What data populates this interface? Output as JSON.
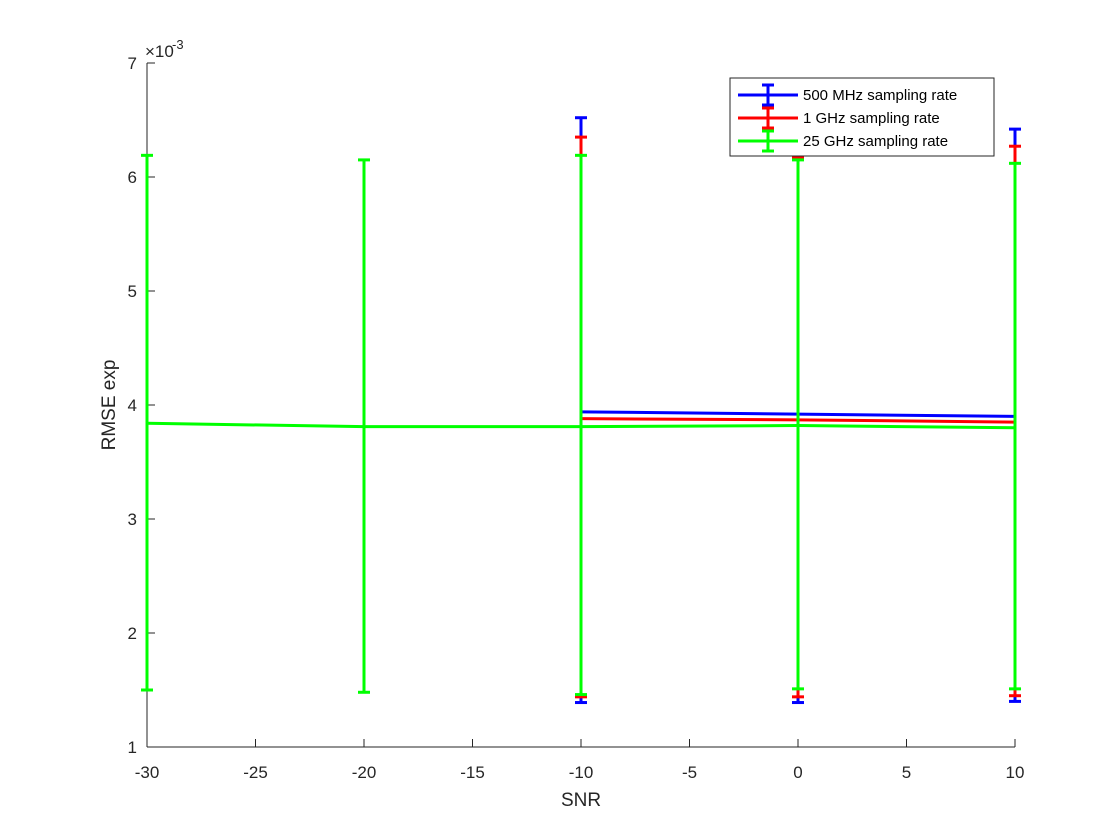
{
  "chart_data": {
    "type": "line",
    "xlabel": "SNR",
    "ylabel": "RMSE exp",
    "y_exponent_label": "×10",
    "y_exponent_power": "-3",
    "xlim": [
      -30,
      10
    ],
    "ylim": [
      1,
      7
    ],
    "y_scale_factor": 0.001,
    "xticks": [
      "-30",
      "-25",
      "-20",
      "-15",
      "-10",
      "-5",
      "0",
      "5",
      "10"
    ],
    "yticks": [
      "1",
      "2",
      "3",
      "4",
      "5",
      "6",
      "7"
    ],
    "grid": false,
    "legend_position": "top-right",
    "series": [
      {
        "name": "500 MHz sampling rate",
        "color": "#0000FF",
        "x": [
          -10,
          0,
          10
        ],
        "y": [
          3.94,
          3.92,
          3.9
        ],
        "err_low": [
          1.39,
          1.39,
          1.4
        ],
        "err_high": [
          6.52,
          6.2,
          6.42
        ]
      },
      {
        "name": "1 GHz sampling rate",
        "color": "#FF0000",
        "x": [
          -10,
          0,
          10
        ],
        "y": [
          3.88,
          3.87,
          3.85
        ],
        "err_low": [
          1.44,
          1.44,
          1.45
        ],
        "err_high": [
          6.35,
          6.17,
          6.27
        ]
      },
      {
        "name": "25 GHz sampling rate",
        "color": "#00FF00",
        "x": [
          -30,
          -20,
          -10,
          0,
          10
        ],
        "y": [
          3.84,
          3.81,
          3.81,
          3.82,
          3.8
        ],
        "err_low": [
          1.5,
          1.48,
          1.46,
          1.51,
          1.51
        ],
        "err_high": [
          6.19,
          6.15,
          6.19,
          6.15,
          6.12
        ]
      }
    ]
  }
}
